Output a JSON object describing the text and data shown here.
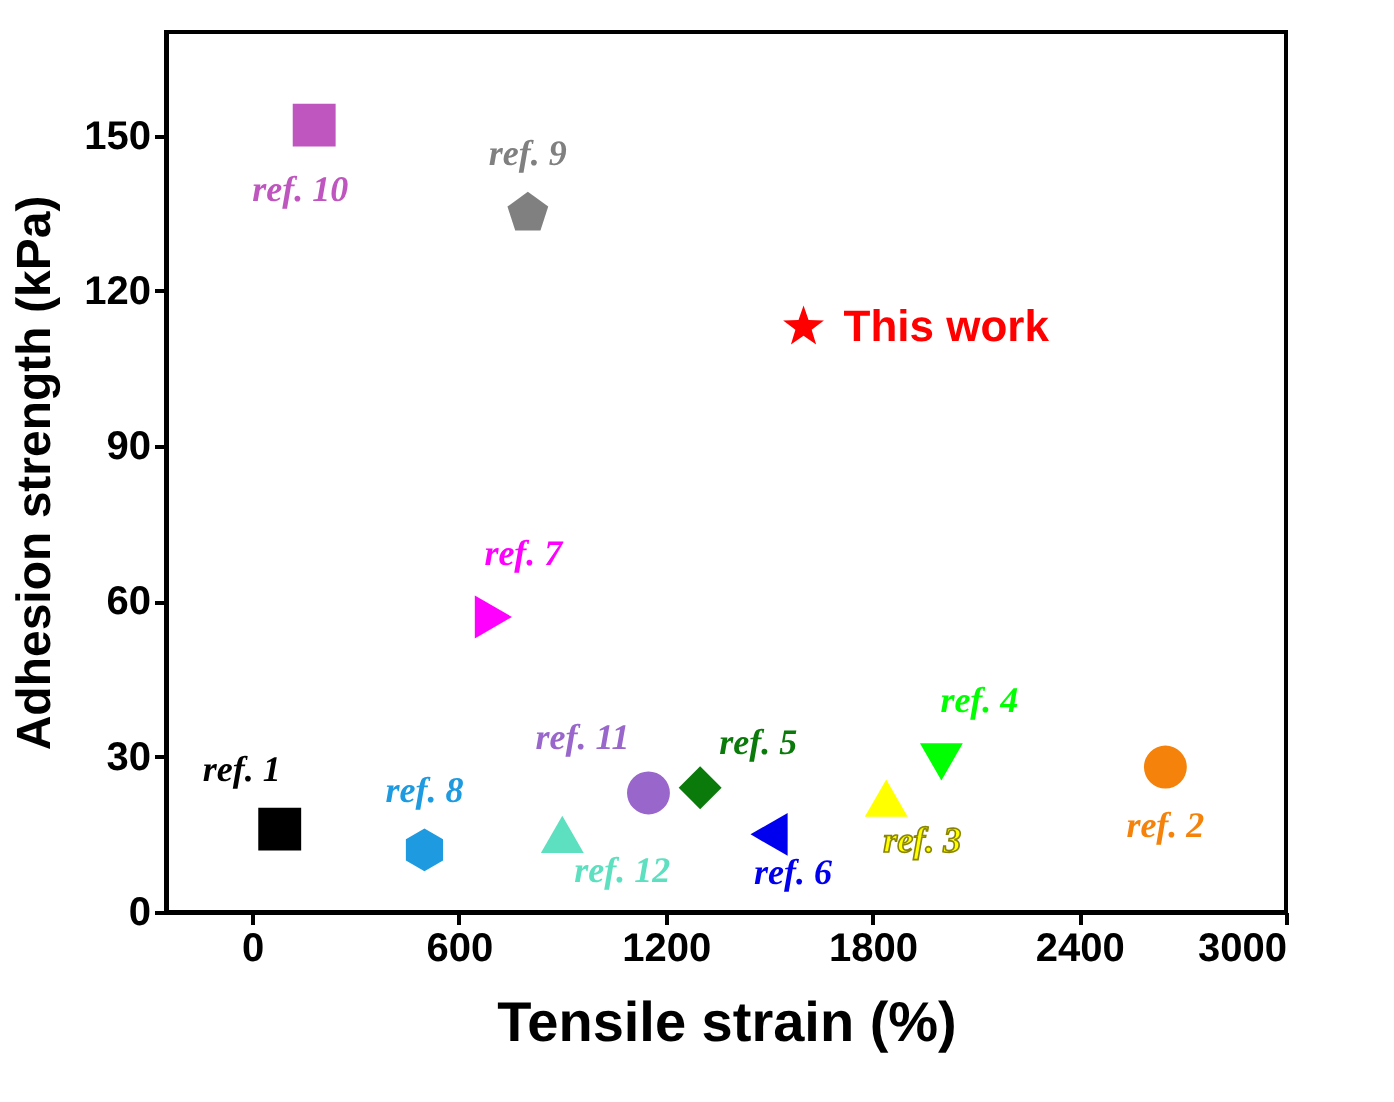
{
  "chart_data": {
    "type": "scatter",
    "xlabel": "Tensile strain (%)",
    "ylabel": "Adhesion strength (kPa)",
    "xlim": [
      -250,
      3000
    ],
    "xticks": [
      0,
      600,
      1200,
      1800,
      2400,
      3000
    ],
    "ylim": [
      0,
      170
    ],
    "yticks": [
      0,
      30,
      60,
      90,
      120,
      150
    ],
    "grid": false,
    "series": [
      {
        "name": "ref. 1",
        "color": "#000000",
        "marker": "square",
        "x": [
          80
        ],
        "values": [
          16
        ]
      },
      {
        "name": "ref. 8",
        "color": "#1e9be0",
        "x": [
          500
        ],
        "values": [
          12
        ]
      },
      {
        "name": "ref. 12",
        "color": "#5ce0bf",
        "marker": "triangle",
        "x": [
          900
        ],
        "values": [
          15
        ]
      },
      {
        "name": "ref. 11",
        "color": "#9966cc",
        "marker": "circle",
        "x": [
          1150
        ],
        "values": [
          23
        ]
      },
      {
        "name": "ref. 5",
        "color": "#0a7a0a",
        "marker": "diamond",
        "x": [
          1300
        ],
        "values": [
          24
        ]
      },
      {
        "name": "ref. 6",
        "color": "#0000ee",
        "marker": "triangle-left",
        "x": [
          1500
        ],
        "values": [
          15
        ]
      },
      {
        "name": "ref. 3",
        "color": "#ffff00",
        "marker": "triangle",
        "x": [
          1840
        ],
        "values": [
          22
        ]
      },
      {
        "name": "ref. 4",
        "color": "#00ff00",
        "marker": "triangle-down",
        "x": [
          2000
        ],
        "values": [
          29
        ]
      },
      {
        "name": "ref. 2",
        "color": "#f5820a",
        "marker": "circle",
        "x": [
          2650
        ],
        "values": [
          28
        ]
      },
      {
        "name": "ref. 7",
        "color": "#ff00ff",
        "marker": "triangle-right",
        "x": [
          700
        ],
        "values": [
          57
        ]
      },
      {
        "name": "ref. 10",
        "color": "#bf55bf",
        "marker": "square",
        "x": [
          180
        ],
        "values": [
          152
        ]
      },
      {
        "name": "ref. 9",
        "color": "#808080",
        "x": [
          800
        ],
        "values": [
          135
        ]
      },
      {
        "name": "This work",
        "color": "#ff0000",
        "marker": "star",
        "x": [
          1600
        ],
        "values": [
          113
        ]
      }
    ]
  }
}
